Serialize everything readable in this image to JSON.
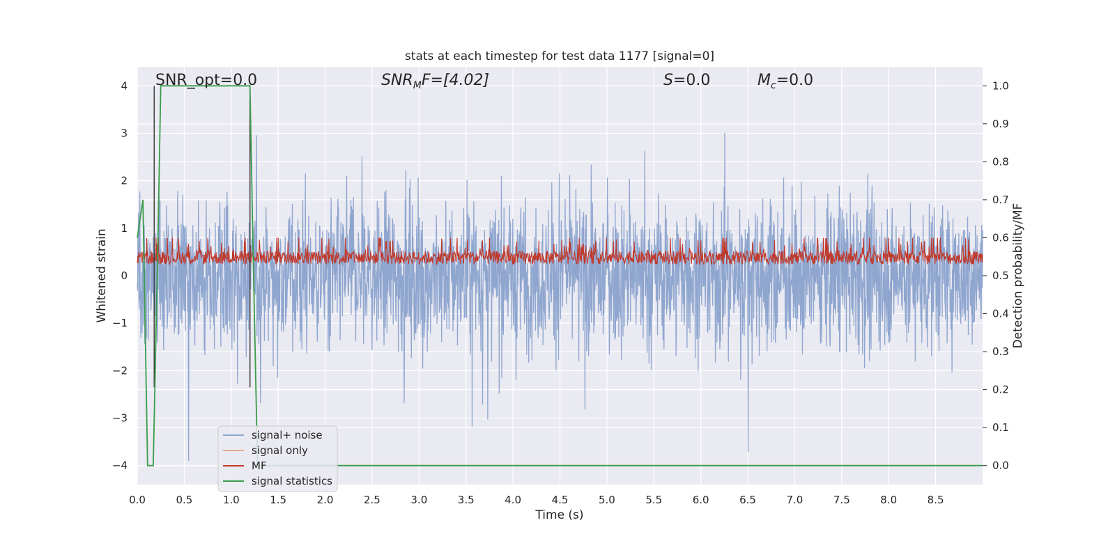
{
  "chart_data": {
    "type": "line",
    "title": "stats at each timestep for test data 1177 [signal=0]",
    "xlabel": "Time (s)",
    "ylabel": "Whitened strain",
    "y2label": "Detection probability/MF",
    "xlim": [
      0.0,
      9.0
    ],
    "ylim": [
      -4.4,
      4.4
    ],
    "y2lim": [
      -0.05,
      1.05
    ],
    "xticks": [
      "0.0",
      "0.5",
      "1.0",
      "1.5",
      "2.0",
      "2.5",
      "3.0",
      "3.5",
      "4.0",
      "4.5",
      "5.0",
      "5.5",
      "6.0",
      "6.5",
      "7.0",
      "7.5",
      "8.0",
      "8.5"
    ],
    "yticks": [
      "4",
      "3",
      "2",
      "1",
      "0",
      "−1",
      "−2",
      "−3",
      "−4"
    ],
    "y2ticks": [
      "1.0",
      "0.9",
      "0.8",
      "0.7",
      "0.6",
      "0.5",
      "0.4",
      "0.3",
      "0.2",
      "0.1",
      "0.0"
    ],
    "grid": true,
    "legend_position": "lower-left",
    "annotations": {
      "snr_opt": "SNR_opt=0.0",
      "snr_mf_main": "SNR",
      "snr_mf_sub": "M",
      "snr_mf_rest": "F=[4.02]",
      "s_main": "S",
      "s_rest": "=0.0",
      "mc_main": "M",
      "mc_sub": "c",
      "mc_rest": "=0.0"
    },
    "series": [
      {
        "name": "signal+ noise",
        "color": "#8fa6cf",
        "style": "dense noise",
        "amplitude_range": [
          -3.9,
          4.0
        ]
      },
      {
        "name": "signal only",
        "color": "#e8a98c",
        "values": []
      },
      {
        "name": "MF",
        "color": "#c0392b",
        "axis": "right",
        "range": [
          0.5,
          0.6
        ]
      },
      {
        "name": "signal statistics",
        "color": "#3a9c4a",
        "axis": "right",
        "x": [
          0.0,
          0.06,
          0.11,
          0.17,
          0.22,
          0.25,
          1.2,
          1.23,
          1.28,
          9.0
        ],
        "values": [
          0.6,
          0.7,
          0.0,
          0.0,
          0.6,
          1.0,
          1.0,
          0.6,
          0.0,
          0.0
        ]
      },
      {
        "name": "",
        "color": "#404040",
        "style": "vertical markers",
        "x": [
          0.18,
          1.2
        ]
      }
    ]
  }
}
